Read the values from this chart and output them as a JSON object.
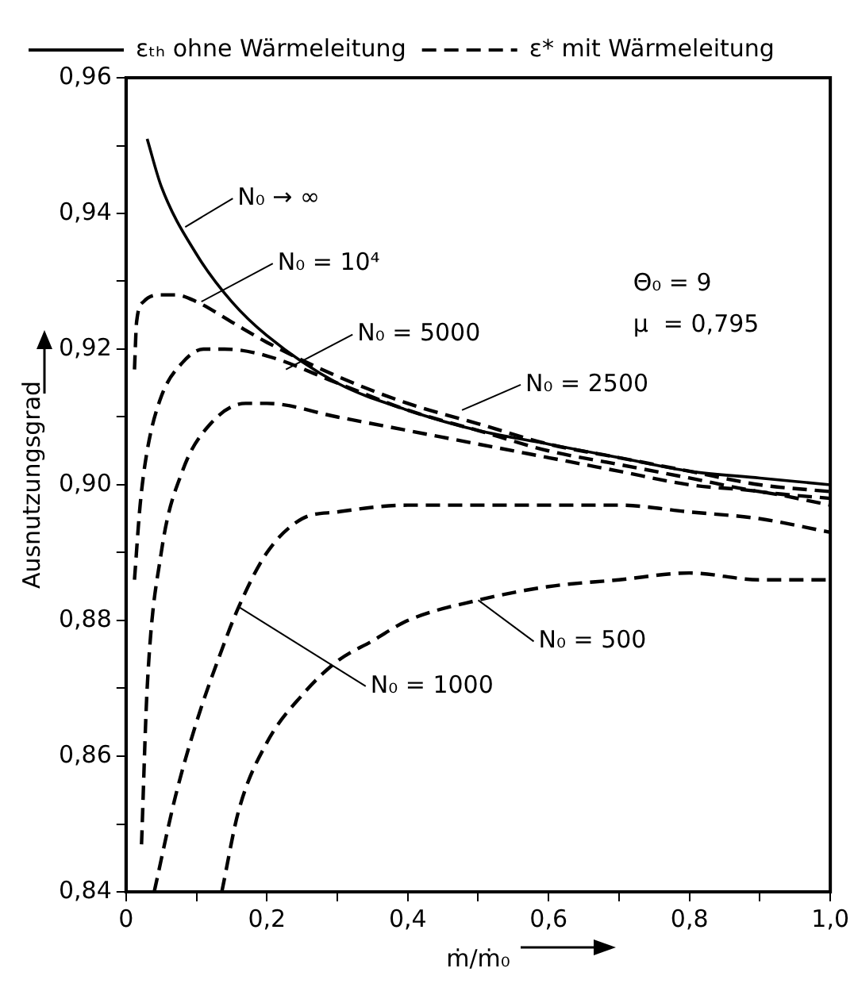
{
  "chart_data": {
    "type": "line",
    "xlabel": "ṁ/ṁ₀",
    "ylabel": "Ausnutzungsgrad",
    "xlim": [
      0,
      1.0
    ],
    "ylim": [
      0.84,
      0.96
    ],
    "xticks": [
      {
        "value": 0,
        "label": "0"
      },
      {
        "value": 0.1,
        "label": null
      },
      {
        "value": 0.2,
        "label": "0,2"
      },
      {
        "value": 0.3,
        "label": null
      },
      {
        "value": 0.4,
        "label": "0,4"
      },
      {
        "value": 0.5,
        "label": null
      },
      {
        "value": 0.6,
        "label": "0,6"
      },
      {
        "value": 0.7,
        "label": null
      },
      {
        "value": 0.8,
        "label": "0,8"
      },
      {
        "value": 0.9,
        "label": null
      },
      {
        "value": 1.0,
        "label": "1,0"
      }
    ],
    "yticks": [
      {
        "value": 0.84,
        "label": "0,84"
      },
      {
        "value": 0.85,
        "label": null
      },
      {
        "value": 0.86,
        "label": "0,86"
      },
      {
        "value": 0.87,
        "label": null
      },
      {
        "value": 0.88,
        "label": "0,88"
      },
      {
        "value": 0.89,
        "label": null
      },
      {
        "value": 0.9,
        "label": "0,90"
      },
      {
        "value": 0.91,
        "label": null
      },
      {
        "value": 0.92,
        "label": "0,92"
      },
      {
        "value": 0.93,
        "label": null
      },
      {
        "value": 0.94,
        "label": "0,94"
      },
      {
        "value": 0.95,
        "label": null
      },
      {
        "value": 0.96,
        "label": "0,96"
      }
    ],
    "grid": false,
    "legend": "top left",
    "marker": "none",
    "series": [
      {
        "name": "εₜₕ ohne Wärmeleitung",
        "color": "#000000",
        "line_style": "solid",
        "x": [
          0.03,
          0.05,
          0.1,
          0.15,
          0.2,
          0.3,
          0.4,
          0.5,
          0.6,
          0.7,
          0.8,
          0.9,
          1.0
        ],
        "values": [
          0.951,
          0.944,
          0.934,
          0.927,
          0.922,
          0.915,
          0.911,
          0.908,
          0.906,
          0.904,
          0.902,
          0.901,
          0.9
        ]
      },
      {
        "name": "ε* mit Wärmeleitung",
        "color": "#000000",
        "line_style": "dashed",
        "x": [
          0.012,
          0.015,
          0.025,
          0.05,
          0.07,
          0.1,
          0.15,
          0.2,
          0.3,
          0.4,
          0.5,
          0.6,
          0.7,
          0.8,
          0.9,
          1.0
        ],
        "values": [
          0.917,
          0.924,
          0.927,
          0.928,
          0.928,
          0.927,
          0.924,
          0.921,
          0.916,
          0.912,
          0.909,
          0.906,
          0.904,
          0.902,
          0.9,
          0.899
        ]
      },
      {
        "color": "#000000",
        "line_style": "dashed",
        "x": [
          0.012,
          0.02,
          0.03,
          0.05,
          0.08,
          0.11,
          0.14,
          0.2,
          0.3,
          0.4,
          0.5,
          0.6,
          0.7,
          0.8,
          0.9,
          1.0
        ],
        "values": [
          0.886,
          0.897,
          0.905,
          0.913,
          0.918,
          0.92,
          0.92,
          0.919,
          0.915,
          0.911,
          0.908,
          0.905,
          0.903,
          0.901,
          0.899,
          0.898
        ]
      },
      {
        "color": "#000000",
        "line_style": "dashed",
        "x": [
          0.022,
          0.03,
          0.05,
          0.08,
          0.12,
          0.17,
          0.2,
          0.3,
          0.4,
          0.5,
          0.6,
          0.7,
          0.8,
          0.9,
          1.0
        ],
        "values": [
          0.847,
          0.87,
          0.89,
          0.902,
          0.909,
          0.912,
          0.912,
          0.91,
          0.908,
          0.906,
          0.904,
          0.902,
          0.9,
          0.899,
          0.897
        ]
      },
      {
        "color": "#000000",
        "line_style": "dashed",
        "x": [
          0.04,
          0.07,
          0.1,
          0.13,
          0.16,
          0.2,
          0.25,
          0.3,
          0.4,
          0.5,
          0.6,
          0.7,
          0.8,
          0.9,
          1.0
        ],
        "values": [
          0.84,
          0.854,
          0.865,
          0.874,
          0.882,
          0.89,
          0.895,
          0.896,
          0.897,
          0.897,
          0.897,
          0.897,
          0.896,
          0.895,
          0.893
        ]
      },
      {
        "color": "#000000",
        "line_style": "dashed",
        "x": [
          0.136,
          0.16,
          0.2,
          0.25,
          0.3,
          0.35,
          0.4,
          0.5,
          0.6,
          0.7,
          0.8,
          0.9,
          1.0
        ],
        "values": [
          0.84,
          0.852,
          0.862,
          0.869,
          0.874,
          0.877,
          0.88,
          0.883,
          0.885,
          0.886,
          0.887,
          0.886,
          0.886
        ]
      }
    ],
    "annotations": [
      {
        "text": "N₀ → ∞",
        "x": 0.084,
        "y": 0.938
      },
      {
        "text": "N₀ = 10⁴",
        "x": 0.107,
        "y": 0.927
      },
      {
        "text": "N₀ = 5000",
        "x": 0.227,
        "y": 0.917
      },
      {
        "text": "N₀ = 2500",
        "x": 0.477,
        "y": 0.911
      },
      {
        "text": "N₀ = 1000",
        "x": 0.16,
        "y": 0.882
      },
      {
        "text": "N₀ = 500",
        "x": 0.5,
        "y": 0.883
      },
      "Θ₀ = 9",
      "μ  = 0,795"
    ]
  }
}
